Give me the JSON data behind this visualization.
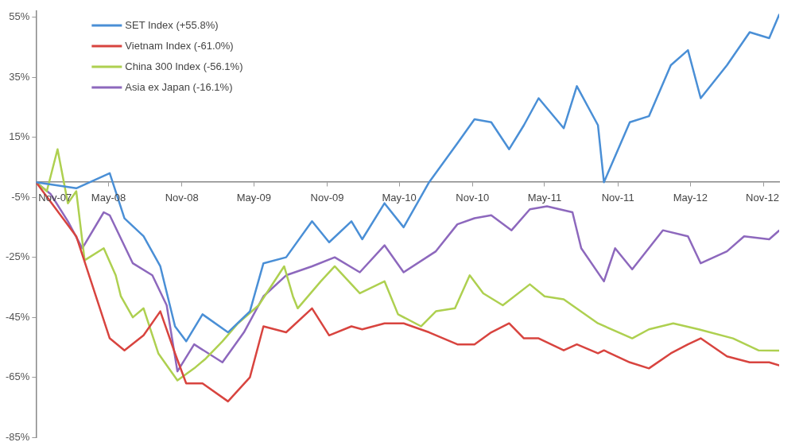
{
  "chart_data": {
    "type": "line",
    "legend": "top left",
    "grid": false,
    "ylim": [
      -85,
      57
    ],
    "yticks": [
      {
        "value": -85,
        "label": "-85%"
      },
      {
        "value": -65,
        "label": "-65%"
      },
      {
        "value": -45,
        "label": "-45%"
      },
      {
        "value": -25,
        "label": "-25%"
      },
      {
        "value": -5,
        "label": "-5%"
      },
      {
        "value": 15,
        "label": "15%"
      },
      {
        "value": 35,
        "label": "35%"
      },
      {
        "value": 55,
        "label": "55%"
      }
    ],
    "xlim": [
      "2007-11-01",
      "2012-12-10"
    ],
    "xticks": [
      {
        "value": "2007-11-01",
        "label": "Nov-07"
      },
      {
        "value": "2008-05-01",
        "label": "May-08"
      },
      {
        "value": "2008-11-01",
        "label": "Nov-08"
      },
      {
        "value": "2009-05-01",
        "label": "May-09"
      },
      {
        "value": "2009-11-01",
        "label": "Nov-09"
      },
      {
        "value": "2010-05-01",
        "label": "May-10"
      },
      {
        "value": "2010-11-01",
        "label": "Nov-10"
      },
      {
        "value": "2011-05-01",
        "label": "May-11"
      },
      {
        "value": "2011-11-01",
        "label": "Nov-11"
      },
      {
        "value": "2012-05-01",
        "label": "May-12"
      },
      {
        "value": "2012-11-01",
        "label": "Nov-12"
      }
    ],
    "series": [
      {
        "name": "SET Index (+55.8%)",
        "color": "#4a8fd6",
        "x": [
          "2007-11-01",
          "2008-02-10",
          "2008-05-04",
          "2008-06-10",
          "2008-07-28",
          "2008-09-08",
          "2008-10-15",
          "2008-11-12",
          "2008-12-23",
          "2009-02-25",
          "2009-04-21",
          "2009-05-25",
          "2009-07-21",
          "2009-09-24",
          "2009-11-06",
          "2010-01-01",
          "2010-01-28",
          "2010-03-25",
          "2010-05-12",
          "2010-07-15",
          "2010-09-24",
          "2010-11-06",
          "2010-12-18",
          "2011-02-01",
          "2011-03-10",
          "2011-04-16",
          "2011-06-18",
          "2011-07-21",
          "2011-09-12",
          "2011-09-27",
          "2011-12-01",
          "2012-01-18",
          "2012-03-13",
          "2012-04-25",
          "2012-05-27",
          "2012-08-01",
          "2012-09-27",
          "2012-11-15",
          "2012-12-10"
        ],
        "values": [
          0,
          -2,
          3,
          -12,
          -18,
          -28,
          -48,
          -53,
          -44,
          -50,
          -43,
          -27,
          -25,
          -13,
          -20,
          -13,
          -19,
          -7,
          -15,
          0,
          13,
          21,
          20,
          11,
          19,
          28,
          18,
          32,
          19,
          0,
          20,
          22,
          39,
          44,
          28,
          39,
          50,
          48,
          55.8
        ]
      },
      {
        "name": "Vietnam Index (-61.0%)",
        "color": "#d8443f",
        "x": [
          "2007-11-01",
          "2008-02-10",
          "2008-05-04",
          "2008-06-10",
          "2008-07-28",
          "2008-09-08",
          "2008-10-15",
          "2008-11-12",
          "2008-12-23",
          "2009-02-25",
          "2009-04-21",
          "2009-05-25",
          "2009-07-21",
          "2009-09-24",
          "2009-11-06",
          "2010-01-01",
          "2010-01-28",
          "2010-03-25",
          "2010-05-12",
          "2010-07-15",
          "2010-09-24",
          "2010-11-06",
          "2010-12-18",
          "2011-02-01",
          "2011-03-10",
          "2011-04-16",
          "2011-06-18",
          "2011-07-21",
          "2011-09-12",
          "2011-09-27",
          "2011-12-01",
          "2012-01-18",
          "2012-03-13",
          "2012-04-25",
          "2012-05-27",
          "2012-08-01",
          "2012-09-27",
          "2012-11-15",
          "2012-12-10"
        ],
        "values": [
          0,
          -18,
          -52,
          -56,
          -51,
          -43,
          -57,
          -67,
          -67,
          -73,
          -65,
          -48,
          -50,
          -42,
          -51,
          -48,
          -49,
          -47,
          -47,
          -50,
          -54,
          -54,
          -50,
          -47,
          -52,
          -52,
          -56,
          -54,
          -57,
          -56,
          -60,
          -62,
          -57,
          -54,
          -52,
          -58,
          -60,
          -60,
          -61.0
        ]
      },
      {
        "name": "China 300 Index (-56.1%)",
        "color": "#aed050",
        "x": [
          "2007-11-01",
          "2007-11-28",
          "2007-12-25",
          "2008-01-20",
          "2008-02-10",
          "2008-03-02",
          "2008-04-19",
          "2008-05-19",
          "2008-06-01",
          "2008-07-01",
          "2008-07-28",
          "2008-09-03",
          "2008-10-21",
          "2008-12-02",
          "2008-12-29",
          "2009-02-11",
          "2009-03-22",
          "2009-05-13",
          "2009-07-16",
          "2009-08-07",
          "2009-08-19",
          "2009-10-16",
          "2009-11-20",
          "2010-01-22",
          "2010-03-25",
          "2010-04-28",
          "2010-06-25",
          "2010-08-01",
          "2010-09-18",
          "2010-10-25",
          "2010-11-28",
          "2011-01-16",
          "2011-03-25",
          "2011-05-01",
          "2011-06-18",
          "2011-09-12",
          "2011-12-07",
          "2012-01-18",
          "2012-03-19",
          "2012-05-22",
          "2012-08-16",
          "2012-10-19",
          "2012-12-10"
        ],
        "values": [
          0,
          -3,
          11,
          -7,
          -3,
          -26,
          -22,
          -31,
          -38,
          -45,
          -42,
          -57,
          -66,
          -62,
          -59,
          -53,
          -47,
          -41,
          -28,
          -38,
          -42,
          -33,
          -28,
          -37,
          -33,
          -44,
          -48,
          -43,
          -42,
          -31,
          -37,
          -41,
          -34,
          -38,
          -39,
          -47,
          -52,
          -49,
          -47,
          -49,
          -52,
          -56,
          -56.1
        ]
      },
      {
        "name": "Asia ex Japan (-16.1%)",
        "color": "#8d68bd",
        "x": [
          "2007-11-01",
          "2007-12-08",
          "2008-01-20",
          "2008-02-25",
          "2008-04-19",
          "2008-05-04",
          "2008-07-01",
          "2008-08-19",
          "2008-09-24",
          "2008-10-21",
          "2008-12-02",
          "2009-02-11",
          "2009-04-06",
          "2009-05-25",
          "2009-07-21",
          "2009-09-24",
          "2009-11-20",
          "2010-01-22",
          "2010-03-25",
          "2010-05-12",
          "2010-08-01",
          "2010-09-24",
          "2010-11-06",
          "2010-12-18",
          "2011-02-07",
          "2011-03-25",
          "2011-05-07",
          "2011-07-10",
          "2011-08-01",
          "2011-09-27",
          "2011-10-25",
          "2011-12-07",
          "2012-02-22",
          "2012-04-25",
          "2012-05-27",
          "2012-08-01",
          "2012-09-13",
          "2012-11-15",
          "2012-12-10"
        ],
        "values": [
          0,
          -4,
          -13,
          -22,
          -10,
          -11,
          -27,
          -31,
          -41,
          -63,
          -54,
          -60,
          -50,
          -38,
          -31,
          -28,
          -25,
          -30,
          -21,
          -30,
          -23,
          -14,
          -12,
          -11,
          -16,
          -9,
          -8,
          -10,
          -22,
          -33,
          -22,
          -29,
          -16,
          -18,
          -27,
          -23,
          -18,
          -19,
          -16.1
        ]
      }
    ]
  }
}
